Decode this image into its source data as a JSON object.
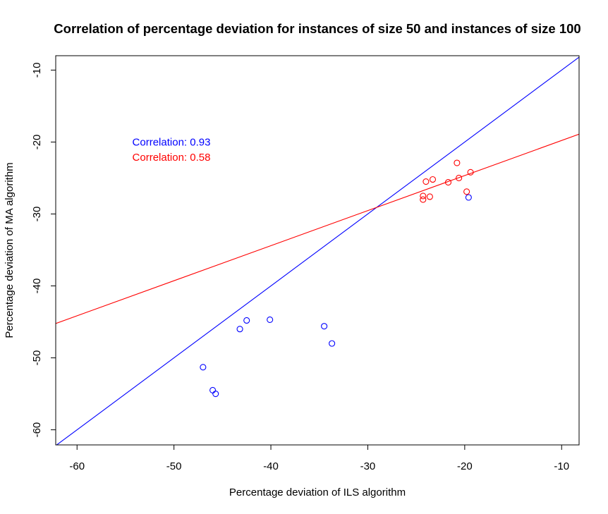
{
  "chart_data": {
    "type": "scatter",
    "title": "Correlation of percentage deviation for instances of size 50 and instances of size 100",
    "xlabel": "Percentage deviation of ILS algorithm",
    "ylabel": "Percentage deviation of MA algorithm",
    "xlim": [
      -62.2,
      -8.2
    ],
    "ylim": [
      -62.1,
      -8.0
    ],
    "x_ticks": [
      -60,
      -50,
      -40,
      -30,
      -20,
      -10
    ],
    "y_ticks": [
      -10,
      -20,
      -30,
      -40,
      -50,
      -60
    ],
    "grid": false,
    "series": [
      {
        "color": "#0000ff",
        "points": [
          {
            "x": -47.0,
            "y": -51.3
          },
          {
            "x": -46.0,
            "y": -54.5
          },
          {
            "x": -45.7,
            "y": -55.0
          },
          {
            "x": -43.2,
            "y": -46.0
          },
          {
            "x": -42.5,
            "y": -44.8
          },
          {
            "x": -40.1,
            "y": -44.7
          },
          {
            "x": -34.5,
            "y": -45.6
          },
          {
            "x": -33.7,
            "y": -48.0
          },
          {
            "x": -19.6,
            "y": -27.7
          }
        ],
        "fit_line": {
          "slope": 1.0,
          "intercept": 0.0
        }
      },
      {
        "color": "#ff0000",
        "points": [
          {
            "x": -24.3,
            "y": -28.0
          },
          {
            "x": -24.3,
            "y": -27.5
          },
          {
            "x": -24.0,
            "y": -25.5
          },
          {
            "x": -23.6,
            "y": -27.6
          },
          {
            "x": -23.3,
            "y": -25.2
          },
          {
            "x": -21.7,
            "y": -25.6
          },
          {
            "x": -20.8,
            "y": -22.9
          },
          {
            "x": -20.6,
            "y": -25.0
          },
          {
            "x": -19.8,
            "y": -26.9
          },
          {
            "x": -19.4,
            "y": -24.2
          }
        ],
        "fit_line": {
          "slope": 0.4874,
          "intercept": -14.91
        }
      }
    ],
    "annotations": [
      {
        "text": "Correlation: 0.93",
        "color": "#0000ff",
        "x": -54.3,
        "y": -20.0
      },
      {
        "text": "Correlation: 0.58",
        "color": "#ff0000",
        "x": -54.3,
        "y": -22.1
      }
    ]
  }
}
